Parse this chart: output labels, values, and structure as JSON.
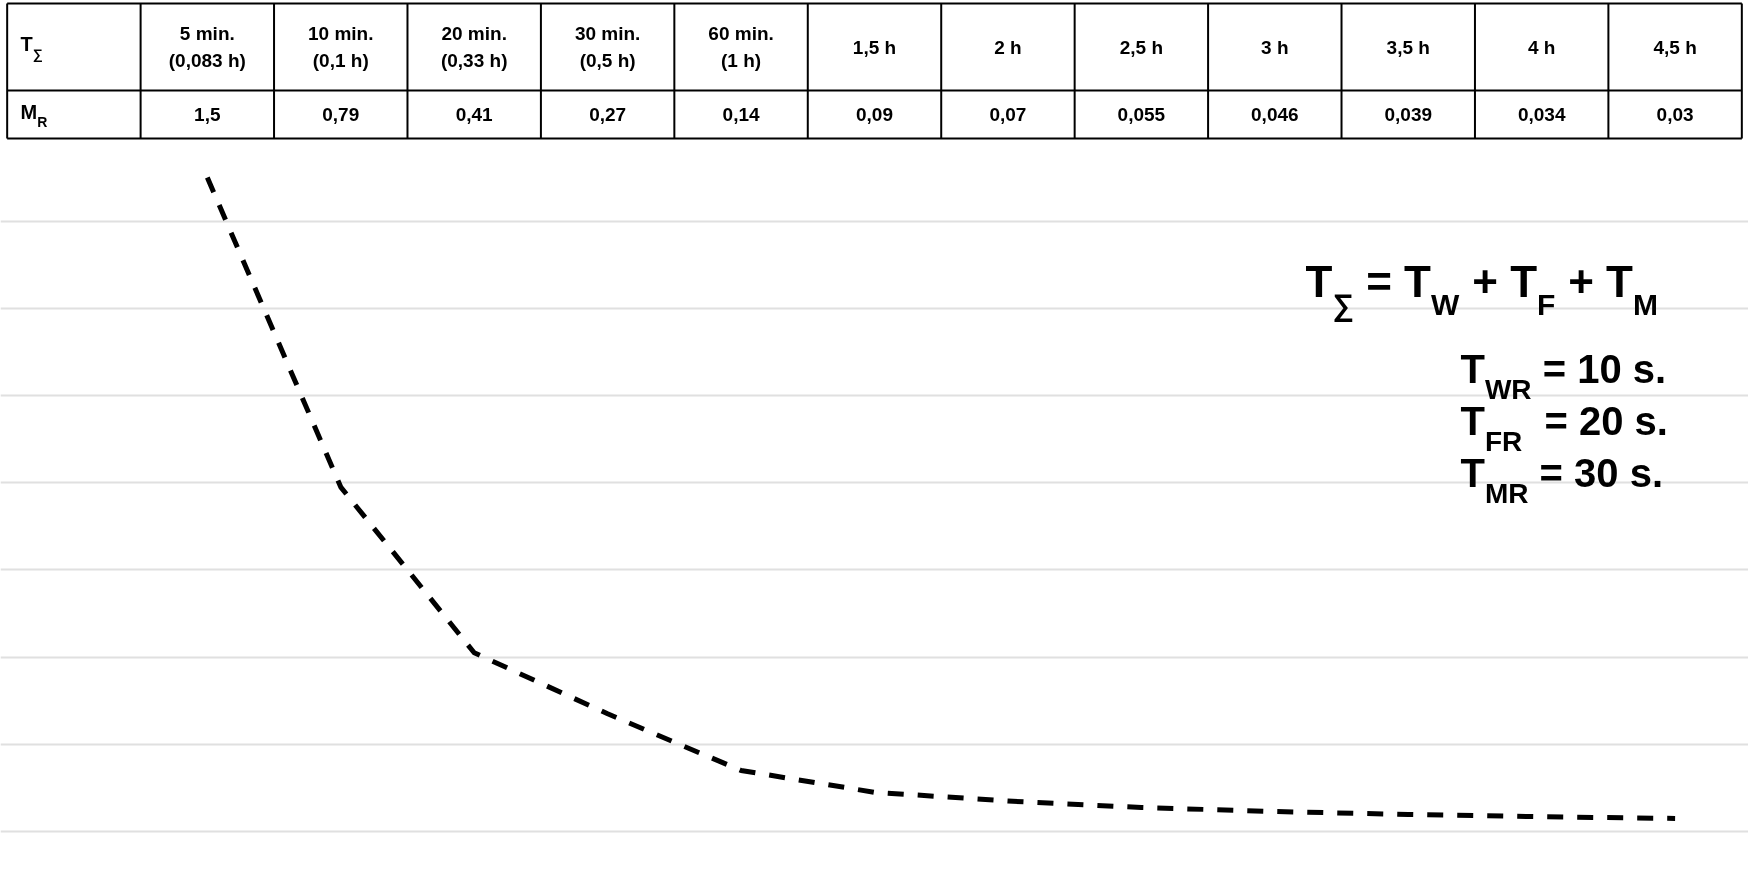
{
  "chart_data": {
    "type": "line",
    "xlabel": "T$_{∑}$",
    "ylabel": "M$_{R}$",
    "categories": [
      "5 min. (0,083 h)",
      "10 min. (0,1 h)",
      "20 min. (0,33 h)",
      "30 min. (0,5 h)",
      "60 min. (1 h)",
      "1,5 h",
      "2 h",
      "2,5 h",
      "3 h",
      "3,5 h",
      "4 h",
      "4,5 h"
    ],
    "series": [
      {
        "color": "#000000",
        "values": [
          1.5,
          0.79,
          0.41,
          0.27,
          0.14,
          0.09,
          0.07,
          0.055,
          0.046,
          0.039,
          0.034,
          0.03
        ],
        "value_labels": [
          "1,5",
          "0,79",
          "0,41",
          "0,27",
          "0,14",
          "0,09",
          "0,07",
          "0,055",
          "0,046",
          "0,039",
          "0,034",
          "0,03"
        ]
      }
    ],
    "grid": "y",
    "tick_labels": false,
    "line_style": "dashed",
    "marker": "none",
    "annotations": [
      "T$_{∑}$ = T$_{W}$ + T$_{F}$ + T$_{M}$",
      "T$_{WR}$ = 10 s.",
      "T$_{FR}$  = 20 s.",
      "T$_{MR}$ = 30 s."
    ]
  }
}
